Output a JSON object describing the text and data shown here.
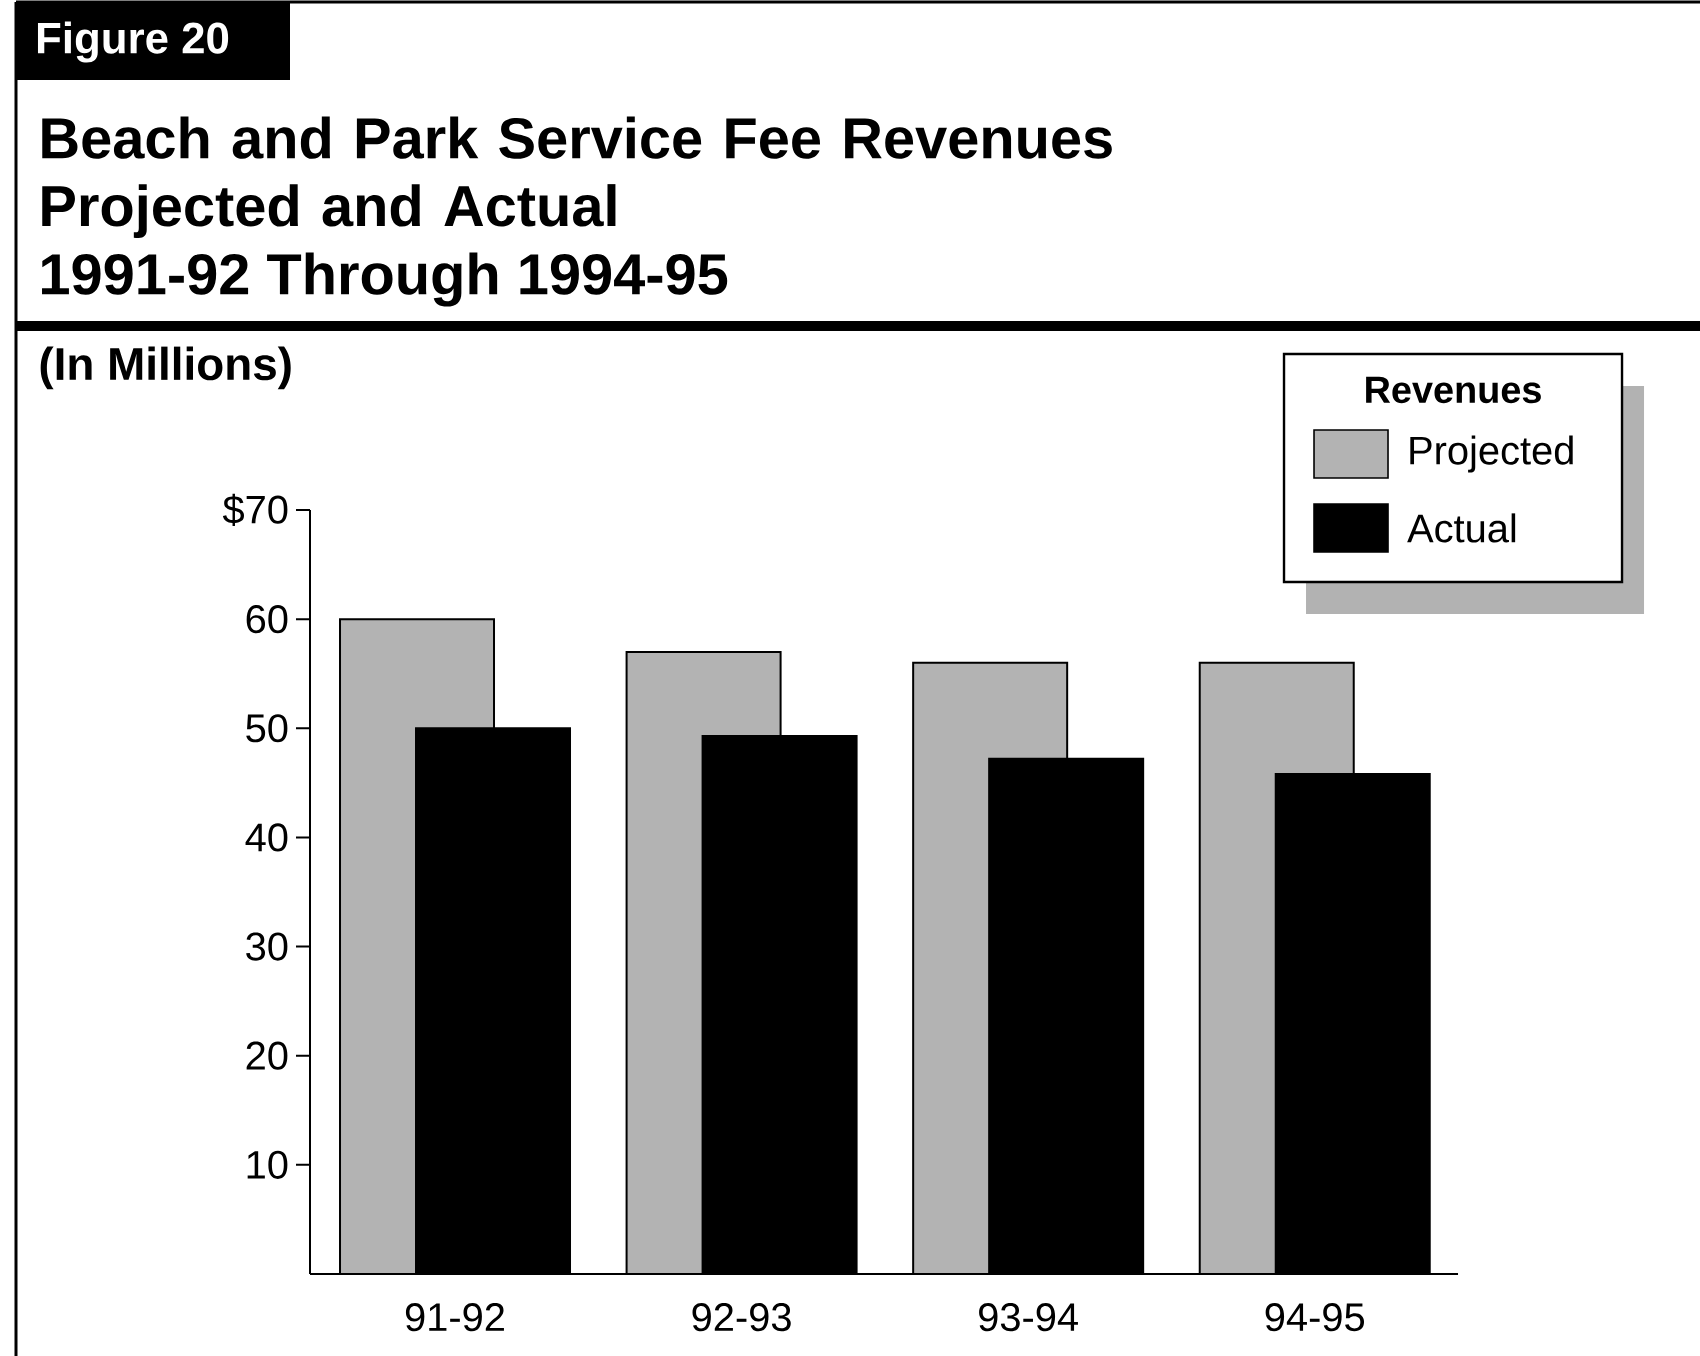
{
  "chart_data": {
    "type": "bar",
    "title": "Beach and Park Service Fee Revenues Projected and Actual",
    "subtitle": "1991-92 Through 1994-95",
    "annotations": [
      "Figure 20",
      "(In Millions)"
    ],
    "legend_title": "Revenues",
    "legend": "top right",
    "categories": [
      "91-92",
      "92-93",
      "93-94",
      "94-95"
    ],
    "series": [
      {
        "name": "Projected",
        "color": "#b3b3b3",
        "values": [
          60,
          57,
          56,
          56
        ]
      },
      {
        "name": "Actual",
        "color": "#000000",
        "values": [
          50,
          49.3,
          47.2,
          45.8
        ]
      }
    ],
    "ylim": [
      0,
      70
    ],
    "yticks": [
      {
        "value": 10,
        "label": "10"
      },
      {
        "value": 20,
        "label": "20"
      },
      {
        "value": 30,
        "label": "30"
      },
      {
        "value": 40,
        "label": "40"
      },
      {
        "value": 50,
        "label": "50"
      },
      {
        "value": 60,
        "label": "60"
      },
      {
        "value": 70,
        "label": "$70"
      }
    ],
    "grid": false
  }
}
